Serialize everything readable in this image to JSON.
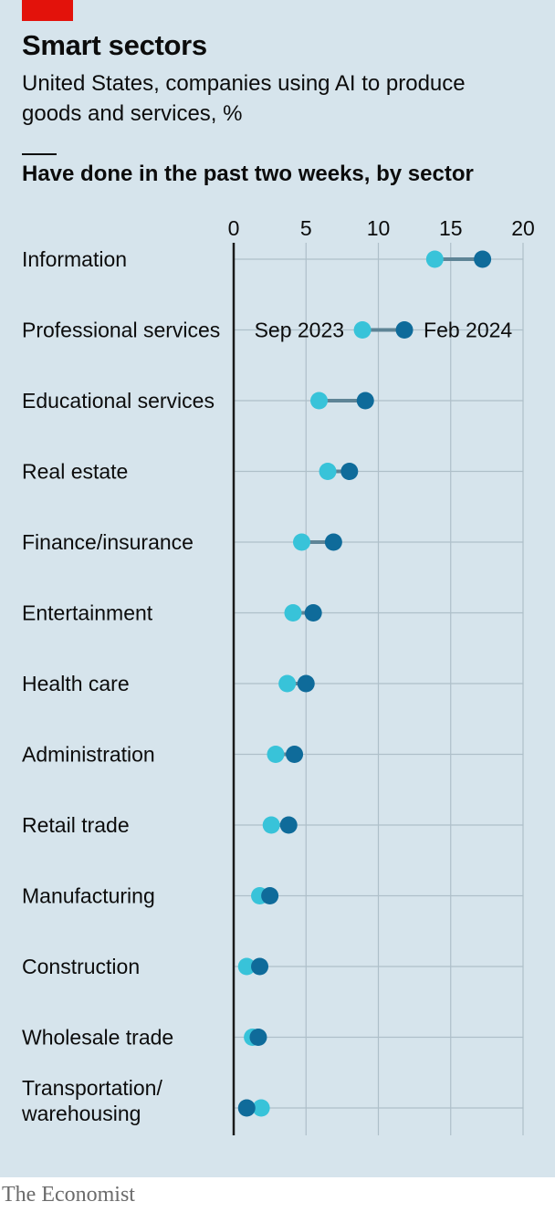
{
  "header": {
    "title": "Smart sectors",
    "subtitle": "United States, companies using AI to produce goods and services, %",
    "section_heading": "Have done in the past two weeks, by sector"
  },
  "footer": {
    "source": "The Economist"
  },
  "colors": {
    "panel_background": "#d6e4ec",
    "brand_red": "#e3120b",
    "sep_2023": "#38c3d9",
    "feb_2024": "#0f6b9a",
    "connector": "#5e8496",
    "gridline": "#aebfc9",
    "text": "#0c0c0c",
    "source_text": "#6b6b6b"
  },
  "chart_data": {
    "type": "dot-plot",
    "title": "Smart sectors",
    "subtitle": "United States, companies using AI to produce goods and services, %",
    "section": "Have done in the past two weeks, by sector",
    "xlim": [
      0,
      20
    ],
    "xticks": [
      0,
      5,
      10,
      15,
      20
    ],
    "grid": true,
    "legend_placement": "inline on second row",
    "categories": [
      [
        "Information"
      ],
      [
        "Professional services"
      ],
      [
        "Educational services"
      ],
      [
        "Real estate"
      ],
      [
        "Finance/insurance"
      ],
      [
        "Entertainment"
      ],
      [
        "Health care"
      ],
      [
        "Administration"
      ],
      [
        "Retail trade"
      ],
      [
        "Manufacturing"
      ],
      [
        "Construction"
      ],
      [
        "Wholesale trade"
      ],
      [
        "Transportation/",
        "warehousing"
      ]
    ],
    "series": [
      {
        "name": "Sep 2023",
        "values": [
          13.9,
          8.9,
          5.9,
          6.5,
          4.7,
          4.1,
          3.7,
          2.9,
          2.6,
          1.8,
          0.9,
          1.3,
          1.9
        ]
      },
      {
        "name": "Feb 2024",
        "values": [
          17.2,
          11.8,
          9.1,
          8.0,
          6.9,
          5.5,
          5.0,
          4.2,
          3.8,
          2.5,
          1.8,
          1.7,
          0.9
        ]
      }
    ]
  }
}
